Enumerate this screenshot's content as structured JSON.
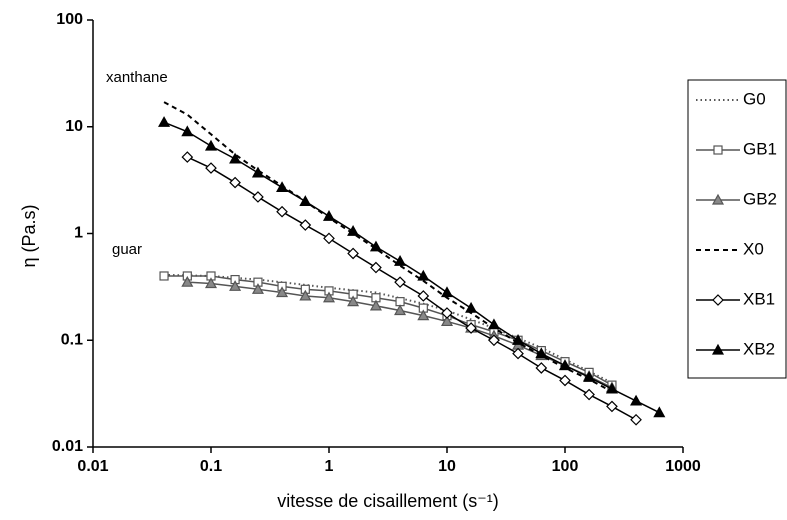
{
  "chart_data": {
    "type": "line",
    "x_label": "vitesse de cisaillement (s⁻¹)",
    "y_label": "η (Pa.s)",
    "annotations": [
      "xanthane",
      "guar"
    ],
    "xlog": true,
    "ylog": true,
    "xlim": [
      0.01,
      1000
    ],
    "xticks": [
      0.01,
      0.1,
      1,
      10,
      100,
      1000
    ],
    "ylim": [
      0.01,
      100
    ],
    "yticks": [
      0.01,
      0.1,
      1,
      10,
      100
    ],
    "legend": "right",
    "series": [
      {
        "name": "G0",
        "color": "#555555",
        "dash": "dotted",
        "marker": "none",
        "marker_fill": "none",
        "x": [
          0.04,
          0.1,
          0.25,
          0.63,
          1,
          2.5,
          6.3,
          10,
          25,
          63,
          100,
          250
        ],
        "values": [
          0.41,
          0.4,
          0.37,
          0.33,
          0.31,
          0.28,
          0.22,
          0.19,
          0.13,
          0.085,
          0.066,
          0.04
        ]
      },
      {
        "name": "GB1",
        "color": "#555555",
        "dash": "solid",
        "marker": "square",
        "marker_fill": "#ffffff",
        "x": [
          0.04,
          0.063,
          0.1,
          0.16,
          0.25,
          0.4,
          0.63,
          1,
          1.6,
          2.5,
          4,
          6.3,
          10,
          16,
          25,
          40,
          63,
          100,
          160,
          250
        ],
        "values": [
          0.4,
          0.4,
          0.4,
          0.37,
          0.35,
          0.32,
          0.3,
          0.29,
          0.27,
          0.25,
          0.23,
          0.2,
          0.17,
          0.14,
          0.12,
          0.1,
          0.08,
          0.063,
          0.05,
          0.038
        ]
      },
      {
        "name": "GB2",
        "color": "#555555",
        "dash": "solid",
        "marker": "triangle",
        "marker_fill": "#888888",
        "x": [
          0.063,
          0.1,
          0.16,
          0.25,
          0.4,
          0.63,
          1,
          1.6,
          2.5,
          4,
          6.3,
          10,
          16,
          25,
          40,
          63,
          100,
          160,
          250
        ],
        "values": [
          0.35,
          0.34,
          0.32,
          0.3,
          0.28,
          0.26,
          0.25,
          0.23,
          0.21,
          0.19,
          0.17,
          0.15,
          0.13,
          0.11,
          0.09,
          0.072,
          0.058,
          0.046,
          0.036
        ]
      },
      {
        "name": "X0",
        "color": "#000000",
        "dash": "dashed",
        "marker": "none",
        "marker_fill": "none",
        "x": [
          0.04,
          0.063,
          0.1,
          0.16,
          0.25,
          0.4,
          0.63,
          1,
          1.6,
          2.5,
          4,
          6.3,
          10,
          16,
          25,
          40,
          63,
          100,
          160,
          250
        ],
        "values": [
          17,
          13,
          8.5,
          5.5,
          3.9,
          2.8,
          2,
          1.4,
          1,
          0.72,
          0.5,
          0.36,
          0.25,
          0.18,
          0.13,
          0.095,
          0.072,
          0.055,
          0.043,
          0.033
        ]
      },
      {
        "name": "XB1",
        "color": "#000000",
        "dash": "solid",
        "marker": "diamond",
        "marker_fill": "#ffffff",
        "x": [
          0.063,
          0.1,
          0.16,
          0.25,
          0.4,
          0.63,
          1,
          1.6,
          2.5,
          4,
          6.3,
          10,
          16,
          25,
          40,
          63,
          100,
          160,
          250,
          400
        ],
        "values": [
          5.2,
          4.1,
          3,
          2.2,
          1.6,
          1.2,
          0.9,
          0.65,
          0.48,
          0.35,
          0.26,
          0.18,
          0.13,
          0.1,
          0.075,
          0.055,
          0.042,
          0.031,
          0.024,
          0.018
        ]
      },
      {
        "name": "XB2",
        "color": "#000000",
        "dash": "solid",
        "marker": "triangle",
        "marker_fill": "#000000",
        "x": [
          0.04,
          0.063,
          0.1,
          0.16,
          0.25,
          0.4,
          0.63,
          1,
          1.6,
          2.5,
          4,
          6.3,
          10,
          16,
          25,
          40,
          63,
          100,
          160,
          250,
          400,
          630
        ],
        "values": [
          11,
          9,
          6.6,
          5,
          3.7,
          2.7,
          2,
          1.45,
          1.05,
          0.75,
          0.55,
          0.4,
          0.28,
          0.2,
          0.14,
          0.1,
          0.075,
          0.058,
          0.045,
          0.035,
          0.027,
          0.021
        ]
      }
    ]
  }
}
